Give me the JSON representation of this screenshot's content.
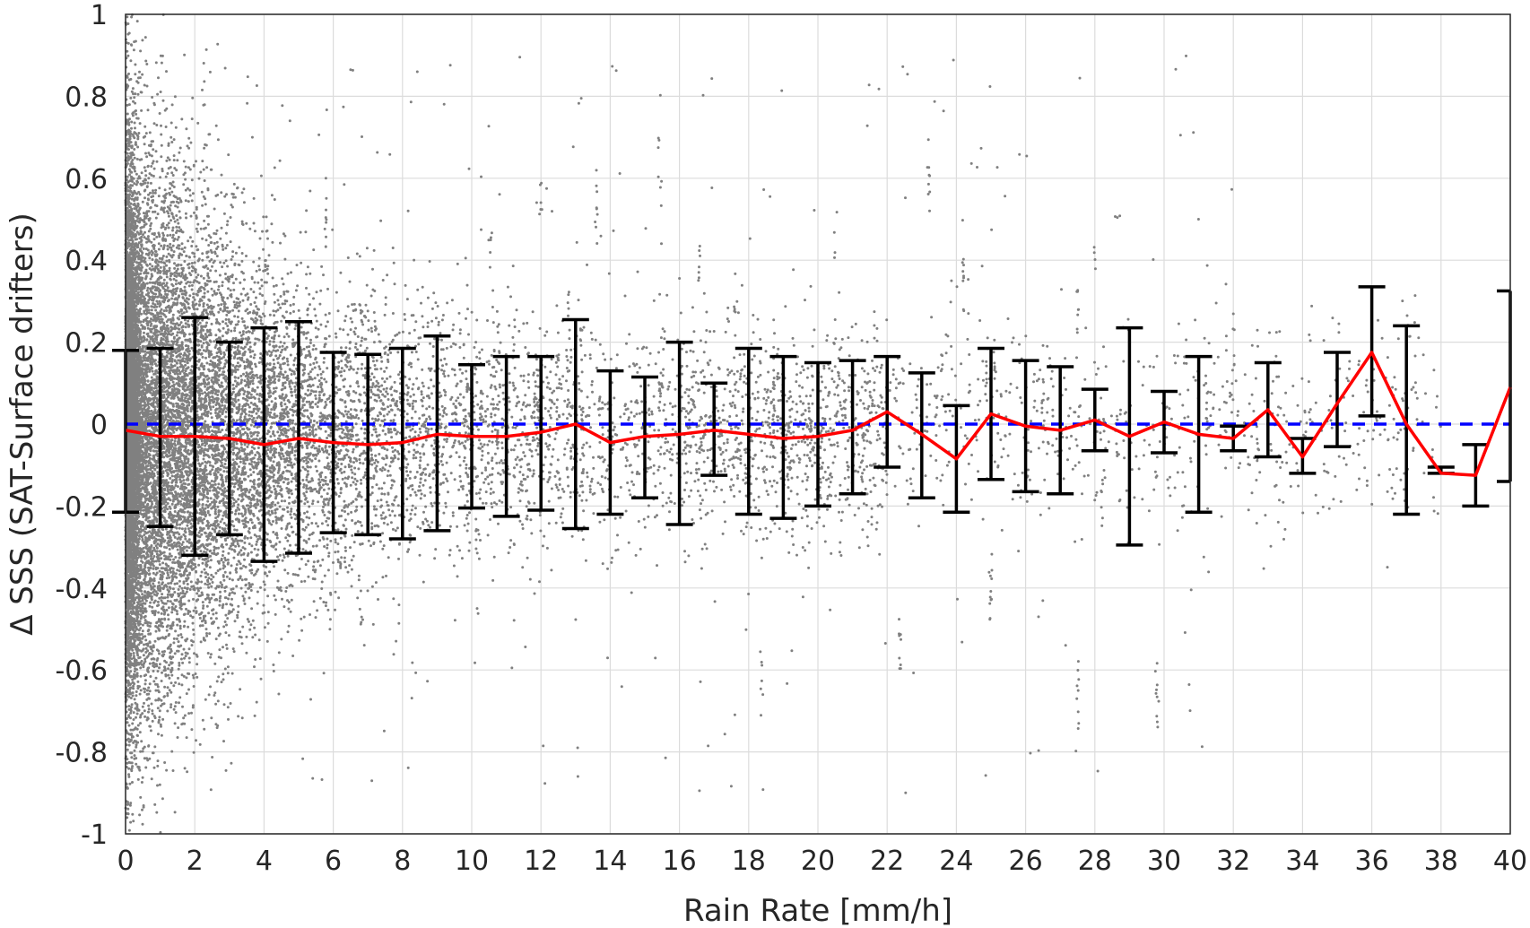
{
  "chart_data": {
    "type": "scatter",
    "title": "",
    "xlabel": "Rain Rate [mm/h]",
    "ylabel": "Δ SSS (SAT-Surface drifters)",
    "xlim": [
      0,
      40
    ],
    "ylim": [
      -1,
      1
    ],
    "xticks": [
      "0",
      "2",
      "4",
      "6",
      "8",
      "10",
      "12",
      "14",
      "16",
      "18",
      "20",
      "22",
      "24",
      "26",
      "28",
      "30",
      "32",
      "34",
      "36",
      "38",
      "40"
    ],
    "yticks": [
      "1",
      "0.8",
      "0.6",
      "0.4",
      "0.2",
      "0",
      "-0.2",
      "-0.4",
      "-0.6",
      "-0.8",
      "-1"
    ],
    "grid": true,
    "colors": {
      "scatter": "#808080",
      "mean_line": "#ff0000",
      "zero_line": "#0000ff",
      "error_bars": "#000000"
    },
    "reference_line": {
      "y": 0,
      "style": "dashed"
    },
    "series": [
      {
        "kind": "mean_with_error_bars",
        "x": [
          0,
          1,
          2,
          3,
          4,
          5,
          6,
          7,
          8,
          9,
          10,
          11,
          12,
          13,
          14,
          15,
          16,
          17,
          18,
          19,
          20,
          21,
          22,
          23,
          24,
          25,
          26,
          27,
          28,
          29,
          30,
          31,
          32,
          33,
          34,
          35,
          36,
          37,
          38,
          39,
          40
        ],
        "mean": [
          -0.015,
          -0.03,
          -0.03,
          -0.035,
          -0.05,
          -0.035,
          -0.045,
          -0.05,
          -0.045,
          -0.025,
          -0.03,
          -0.03,
          -0.02,
          0.0,
          -0.045,
          -0.03,
          -0.025,
          -0.015,
          -0.025,
          -0.035,
          -0.03,
          -0.015,
          0.03,
          -0.025,
          -0.085,
          0.025,
          -0.005,
          -0.015,
          0.01,
          -0.03,
          0.005,
          -0.025,
          -0.035,
          0.035,
          -0.08,
          0.05,
          0.175,
          0.0,
          -0.12,
          -0.125,
          0.09
        ],
        "upper": [
          0.18,
          0.185,
          0.26,
          0.2,
          0.235,
          0.25,
          0.175,
          0.17,
          0.185,
          0.215,
          0.145,
          0.165,
          0.165,
          0.255,
          0.13,
          0.115,
          0.2,
          0.1,
          0.185,
          0.165,
          0.15,
          0.155,
          0.165,
          0.125,
          0.045,
          0.185,
          0.155,
          0.14,
          0.085,
          0.235,
          0.08,
          0.165,
          -0.005,
          0.15,
          -0.035,
          0.175,
          0.335,
          0.24,
          -0.105,
          -0.05,
          0.325
        ],
        "lower": [
          -0.215,
          -0.25,
          -0.32,
          -0.27,
          -0.335,
          -0.315,
          -0.265,
          -0.27,
          -0.28,
          -0.26,
          -0.205,
          -0.225,
          -0.21,
          -0.255,
          -0.22,
          -0.18,
          -0.245,
          -0.125,
          -0.22,
          -0.23,
          -0.2,
          -0.17,
          -0.105,
          -0.18,
          -0.215,
          -0.135,
          -0.165,
          -0.17,
          -0.065,
          -0.295,
          -0.07,
          -0.215,
          -0.065,
          -0.08,
          -0.12,
          -0.055,
          0.02,
          -0.22,
          -0.12,
          -0.2,
          -0.14
        ]
      }
    ],
    "scatter_description_counts": {
      "dense_region_x_max": 16,
      "sparse_points_to": 40
    }
  }
}
